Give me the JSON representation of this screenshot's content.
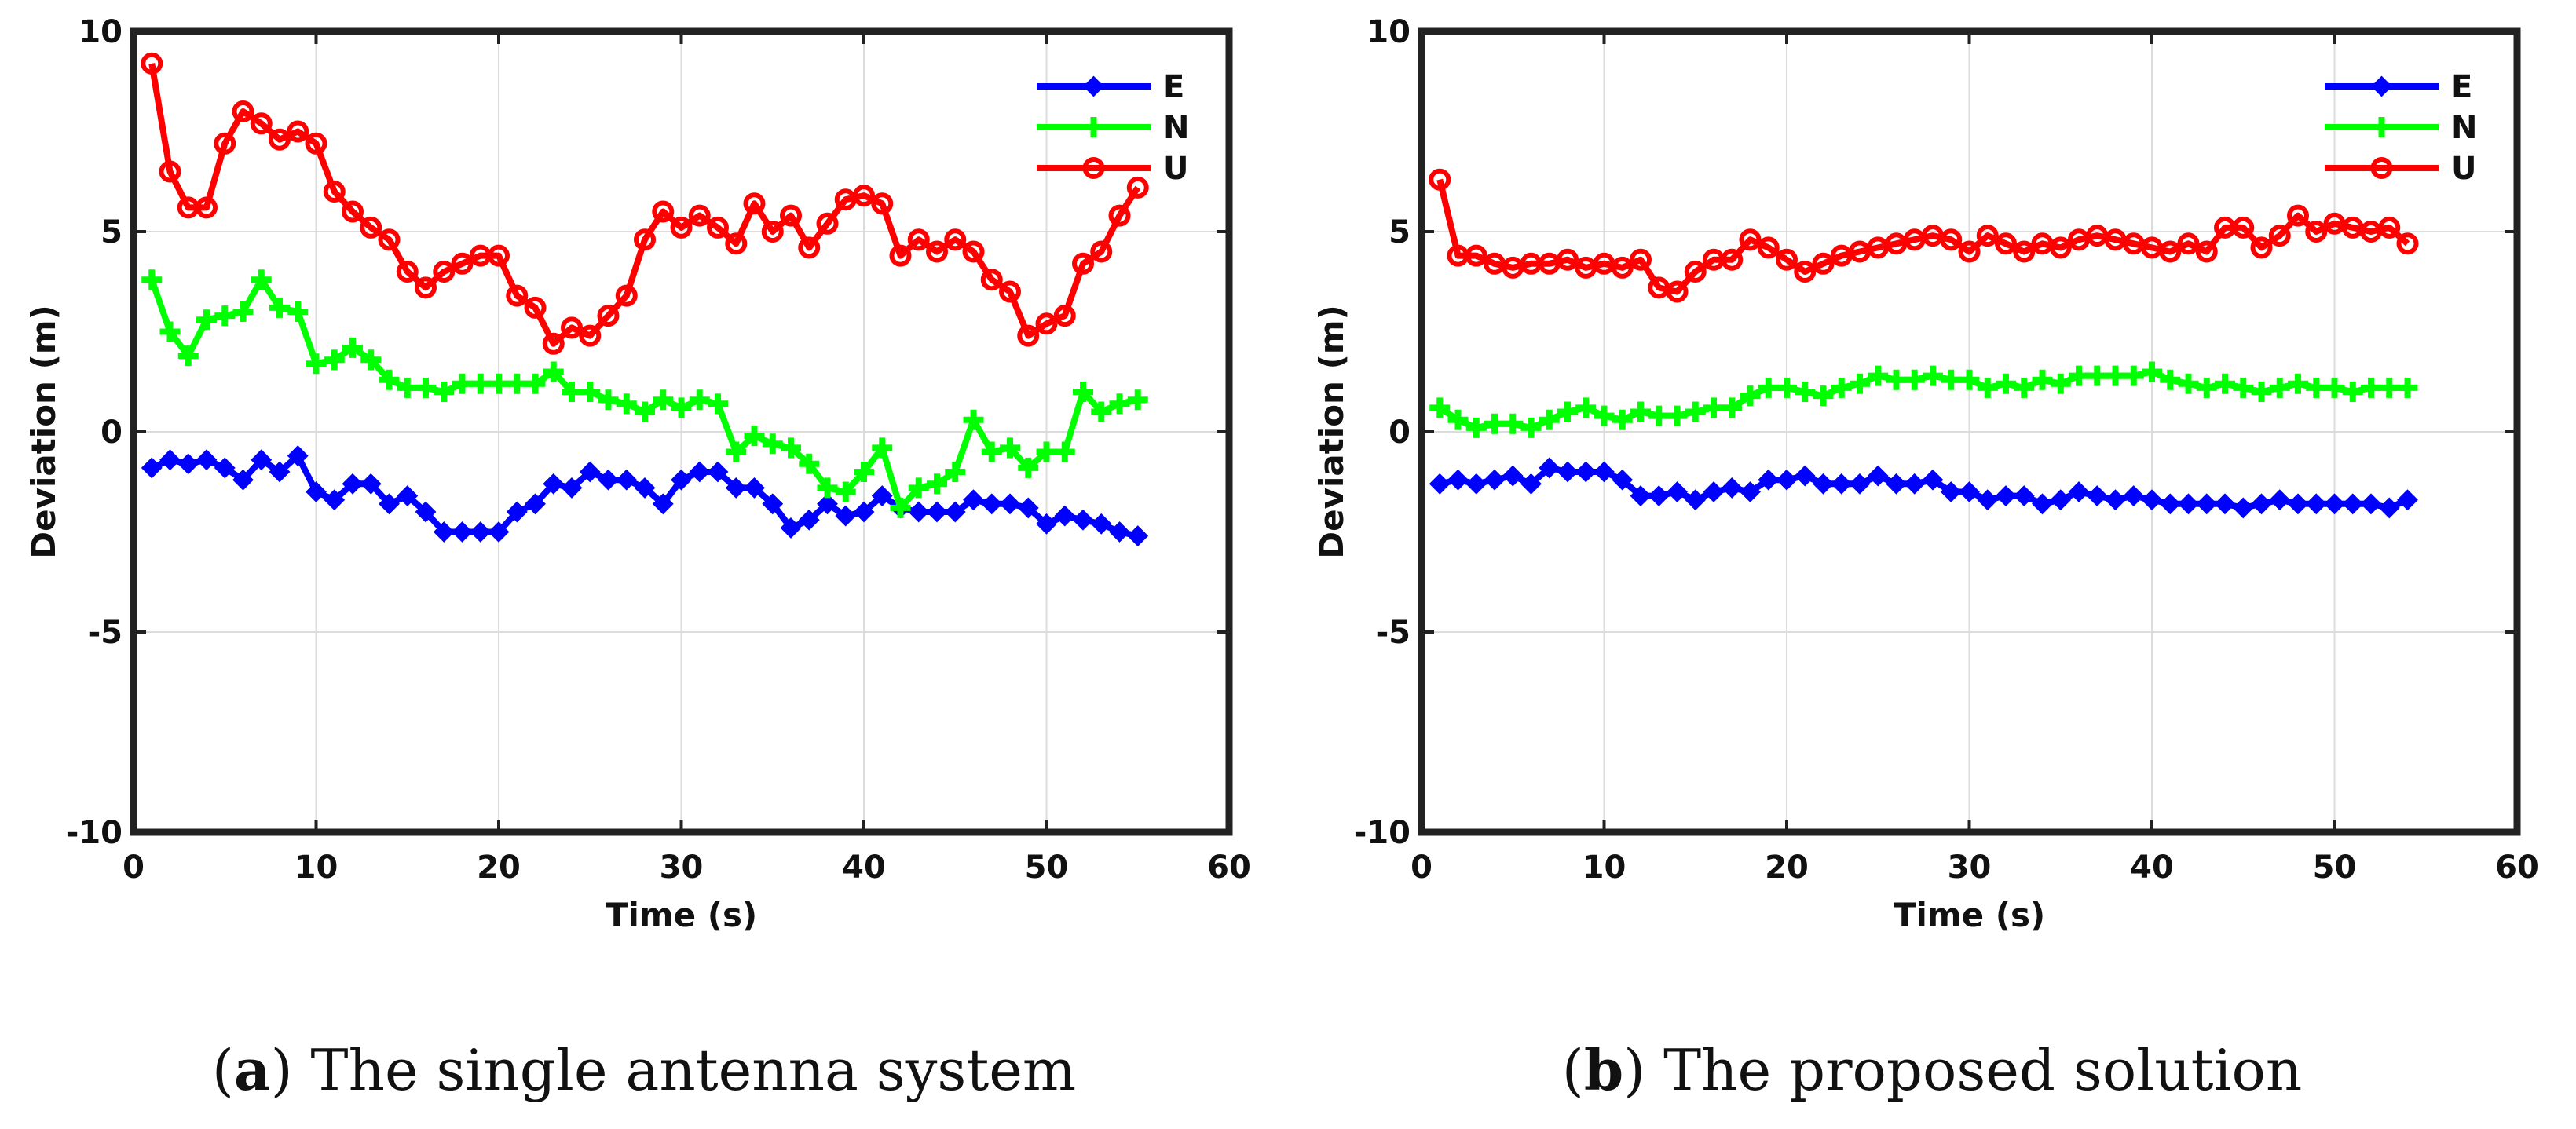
{
  "chart_data": [
    {
      "id": "a",
      "type": "line",
      "caption_letter": "a",
      "caption_text": "The single antenna system",
      "xlabel": "Time (s)",
      "ylabel": "Deviation (m)",
      "xlim": [
        0,
        60
      ],
      "ylim": [
        -10,
        10
      ],
      "xticks": [
        0,
        10,
        20,
        30,
        40,
        50,
        60
      ],
      "yticks": [
        -10,
        -5,
        0,
        5,
        10
      ],
      "grid": true,
      "legend_position": "top-right",
      "series": [
        {
          "name": "E",
          "color": "#0000ff",
          "marker": "diamond",
          "x": [
            1,
            2,
            3,
            4,
            5,
            6,
            7,
            8,
            9,
            10,
            11,
            12,
            13,
            14,
            15,
            16,
            17,
            18,
            19,
            20,
            21,
            22,
            23,
            24,
            25,
            26,
            27,
            28,
            29,
            30,
            31,
            32,
            33,
            34,
            35,
            36,
            37,
            38,
            39,
            40,
            41,
            42,
            43,
            44,
            45,
            46,
            47,
            48,
            49,
            50,
            51,
            52,
            53,
            54,
            55
          ],
          "values": [
            -0.9,
            -0.7,
            -0.8,
            -0.7,
            -0.9,
            -1.2,
            -0.7,
            -1.0,
            -0.6,
            -1.5,
            -1.7,
            -1.3,
            -1.3,
            -1.8,
            -1.6,
            -2.0,
            -2.5,
            -2.5,
            -2.5,
            -2.5,
            -2.0,
            -1.8,
            -1.3,
            -1.4,
            -1.0,
            -1.2,
            -1.2,
            -1.4,
            -1.8,
            -1.2,
            -1.0,
            -1.0,
            -1.4,
            -1.4,
            -1.8,
            -2.4,
            -2.2,
            -1.8,
            -2.1,
            -2.0,
            -1.6,
            -1.9,
            -2.0,
            -2.0,
            -2.0,
            -1.7,
            -1.8,
            -1.8,
            -1.9,
            -2.3,
            -2.1,
            -2.2,
            -2.3,
            -2.5,
            -2.6
          ]
        },
        {
          "name": "N",
          "color": "#00ff00",
          "marker": "plus",
          "x": [
            1,
            2,
            3,
            4,
            5,
            6,
            7,
            8,
            9,
            10,
            11,
            12,
            13,
            14,
            15,
            16,
            17,
            18,
            19,
            20,
            21,
            22,
            23,
            24,
            25,
            26,
            27,
            28,
            29,
            30,
            31,
            32,
            33,
            34,
            35,
            36,
            37,
            38,
            39,
            40,
            41,
            42,
            43,
            44,
            45,
            46,
            47,
            48,
            49,
            50,
            51,
            52,
            53,
            54,
            55
          ],
          "values": [
            3.8,
            2.5,
            1.9,
            2.8,
            2.9,
            3.0,
            3.8,
            3.1,
            3.0,
            1.7,
            1.8,
            2.1,
            1.8,
            1.3,
            1.1,
            1.1,
            1.0,
            1.2,
            1.2,
            1.2,
            1.2,
            1.2,
            1.5,
            1.0,
            1.0,
            0.8,
            0.7,
            0.5,
            0.8,
            0.6,
            0.8,
            0.7,
            -0.5,
            -0.1,
            -0.3,
            -0.4,
            -0.8,
            -1.4,
            -1.5,
            -1.0,
            -0.4,
            -1.9,
            -1.4,
            -1.3,
            -1.0,
            0.3,
            -0.5,
            -0.4,
            -0.9,
            -0.5,
            -0.5,
            1.0,
            0.5,
            0.7,
            0.8
          ]
        },
        {
          "name": "U",
          "color": "#ff0000",
          "marker": "circle",
          "x": [
            1,
            2,
            3,
            4,
            5,
            6,
            7,
            8,
            9,
            10,
            11,
            12,
            13,
            14,
            15,
            16,
            17,
            18,
            19,
            20,
            21,
            22,
            23,
            24,
            25,
            26,
            27,
            28,
            29,
            30,
            31,
            32,
            33,
            34,
            35,
            36,
            37,
            38,
            39,
            40,
            41,
            42,
            43,
            44,
            45,
            46,
            47,
            48,
            49,
            50,
            51,
            52,
            53,
            54,
            55
          ],
          "values": [
            9.2,
            6.5,
            5.6,
            5.6,
            7.2,
            8.0,
            7.7,
            7.3,
            7.5,
            7.2,
            6.0,
            5.5,
            5.1,
            4.8,
            4.0,
            3.6,
            4.0,
            4.2,
            4.4,
            4.4,
            3.4,
            3.1,
            2.2,
            2.6,
            2.4,
            2.9,
            3.4,
            4.8,
            5.5,
            5.1,
            5.4,
            5.1,
            4.7,
            5.7,
            5.0,
            5.4,
            4.6,
            5.2,
            5.8,
            5.9,
            5.7,
            4.4,
            4.8,
            4.5,
            4.8,
            4.5,
            3.8,
            3.5,
            2.4,
            2.7,
            2.9,
            4.2,
            4.5,
            5.4,
            6.1
          ]
        }
      ]
    },
    {
      "id": "b",
      "type": "line",
      "caption_letter": "b",
      "caption_text": "The proposed solution",
      "xlabel": "Time (s)",
      "ylabel": "Deviation (m)",
      "xlim": [
        0,
        60
      ],
      "ylim": [
        -10,
        10
      ],
      "xticks": [
        0,
        10,
        20,
        30,
        40,
        50,
        60
      ],
      "yticks": [
        -10,
        -5,
        0,
        5,
        10
      ],
      "grid": true,
      "legend_position": "top-right",
      "series": [
        {
          "name": "E",
          "color": "#0000ff",
          "marker": "diamond",
          "x": [
            1,
            2,
            3,
            4,
            5,
            6,
            7,
            8,
            9,
            10,
            11,
            12,
            13,
            14,
            15,
            16,
            17,
            18,
            19,
            20,
            21,
            22,
            23,
            24,
            25,
            26,
            27,
            28,
            29,
            30,
            31,
            32,
            33,
            34,
            35,
            36,
            37,
            38,
            39,
            40,
            41,
            42,
            43,
            44,
            45,
            46,
            47,
            48,
            49,
            50,
            51,
            52,
            53,
            54
          ],
          "values": [
            -1.3,
            -1.2,
            -1.3,
            -1.2,
            -1.1,
            -1.3,
            -0.9,
            -1.0,
            -1.0,
            -1.0,
            -1.2,
            -1.6,
            -1.6,
            -1.5,
            -1.7,
            -1.5,
            -1.4,
            -1.5,
            -1.2,
            -1.2,
            -1.1,
            -1.3,
            -1.3,
            -1.3,
            -1.1,
            -1.3,
            -1.3,
            -1.2,
            -1.5,
            -1.5,
            -1.7,
            -1.6,
            -1.6,
            -1.8,
            -1.7,
            -1.5,
            -1.6,
            -1.7,
            -1.6,
            -1.7,
            -1.8,
            -1.8,
            -1.8,
            -1.8,
            -1.9,
            -1.8,
            -1.7,
            -1.8,
            -1.8,
            -1.8,
            -1.8,
            -1.8,
            -1.9,
            -1.7
          ]
        },
        {
          "name": "N",
          "color": "#00ff00",
          "marker": "plus",
          "x": [
            1,
            2,
            3,
            4,
            5,
            6,
            7,
            8,
            9,
            10,
            11,
            12,
            13,
            14,
            15,
            16,
            17,
            18,
            19,
            20,
            21,
            22,
            23,
            24,
            25,
            26,
            27,
            28,
            29,
            30,
            31,
            32,
            33,
            34,
            35,
            36,
            37,
            38,
            39,
            40,
            41,
            42,
            43,
            44,
            45,
            46,
            47,
            48,
            49,
            50,
            51,
            52,
            53,
            54
          ],
          "values": [
            0.6,
            0.3,
            0.1,
            0.2,
            0.2,
            0.1,
            0.3,
            0.5,
            0.6,
            0.4,
            0.3,
            0.5,
            0.4,
            0.4,
            0.5,
            0.6,
            0.6,
            0.9,
            1.1,
            1.1,
            1.0,
            0.9,
            1.1,
            1.2,
            1.4,
            1.3,
            1.3,
            1.4,
            1.3,
            1.3,
            1.1,
            1.2,
            1.1,
            1.3,
            1.2,
            1.4,
            1.4,
            1.4,
            1.4,
            1.5,
            1.3,
            1.2,
            1.1,
            1.2,
            1.1,
            1.0,
            1.1,
            1.2,
            1.1,
            1.1,
            1.0,
            1.1,
            1.1,
            1.1
          ]
        },
        {
          "name": "U",
          "color": "#ff0000",
          "marker": "circle",
          "x": [
            1,
            2,
            3,
            4,
            5,
            6,
            7,
            8,
            9,
            10,
            11,
            12,
            13,
            14,
            15,
            16,
            17,
            18,
            19,
            20,
            21,
            22,
            23,
            24,
            25,
            26,
            27,
            28,
            29,
            30,
            31,
            32,
            33,
            34,
            35,
            36,
            37,
            38,
            39,
            40,
            41,
            42,
            43,
            44,
            45,
            46,
            47,
            48,
            49,
            50,
            51,
            52,
            53,
            54
          ],
          "values": [
            6.3,
            4.4,
            4.4,
            4.2,
            4.1,
            4.2,
            4.2,
            4.3,
            4.1,
            4.2,
            4.1,
            4.3,
            3.6,
            3.5,
            4.0,
            4.3,
            4.3,
            4.8,
            4.6,
            4.3,
            4.0,
            4.2,
            4.4,
            4.5,
            4.6,
            4.7,
            4.8,
            4.9,
            4.8,
            4.5,
            4.9,
            4.7,
            4.5,
            4.7,
            4.6,
            4.8,
            4.9,
            4.8,
            4.7,
            4.6,
            4.5,
            4.7,
            4.5,
            5.1,
            5.1,
            4.6,
            4.9,
            5.4,
            5.0,
            5.2,
            5.1,
            5.0,
            5.1,
            4.7
          ]
        }
      ]
    }
  ]
}
